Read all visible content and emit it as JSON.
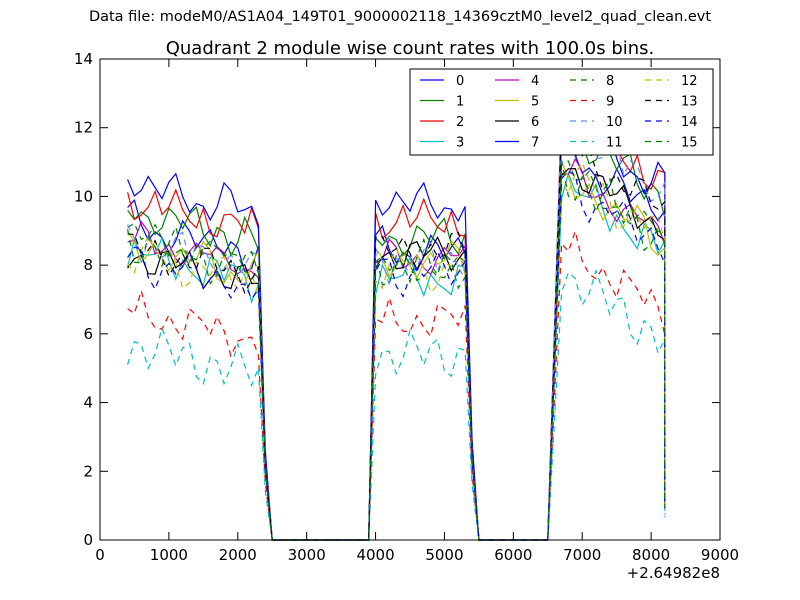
{
  "header": {
    "file_text": "Data file: modeM0/AS1A04_149T01_9000002118_14369cztM0_level2_quad_clean.evt"
  },
  "chart_data": {
    "type": "line",
    "title": "Quadrant 2 module wise count rates with 100.0s bins.",
    "xlabel": "",
    "ylabel": "",
    "x_offset_label": "+2.64982e8",
    "xlim": [
      0,
      9000
    ],
    "ylim": [
      0,
      14
    ],
    "xticks": [
      0,
      1000,
      2000,
      3000,
      4000,
      5000,
      6000,
      7000,
      8000,
      9000
    ],
    "yticks": [
      0,
      2,
      4,
      6,
      8,
      10,
      12,
      14
    ],
    "grid": false,
    "legend_position": "top-right",
    "legend_columns": 4,
    "segments": [
      {
        "x_start": 400,
        "x_end": 2300
      },
      {
        "x_start": 4000,
        "x_end": 5300
      },
      {
        "x_start": 6700,
        "x_end": 8200
      }
    ],
    "zero_gaps": [
      {
        "x_start": 2500,
        "x_end": 3900
      },
      {
        "x_start": 5500,
        "x_end": 6500
      }
    ],
    "series": [
      {
        "name": "0",
        "color": "#0000ff",
        "dash": "solid",
        "levels": [
          9.2,
          8.4,
          10.2
        ]
      },
      {
        "name": "1",
        "color": "#008000",
        "dash": "solid",
        "levels": [
          9.6,
          8.8,
          10.8
        ]
      },
      {
        "name": "2",
        "color": "#ff0000",
        "dash": "solid",
        "levels": [
          9.9,
          9.3,
          11.2
        ]
      },
      {
        "name": "3",
        "color": "#00bfbf",
        "dash": "solid",
        "levels": [
          8.4,
          7.6,
          9.2
        ]
      },
      {
        "name": "4",
        "color": "#bf00bf",
        "dash": "solid",
        "levels": [
          8.8,
          8.2,
          9.6
        ]
      },
      {
        "name": "5",
        "color": "#bfbf00",
        "dash": "solid",
        "levels": [
          8.6,
          8.1,
          9.4
        ]
      },
      {
        "name": "6",
        "color": "#000000",
        "dash": "solid",
        "levels": [
          8.3,
          8.3,
          9.8
        ]
      },
      {
        "name": "7",
        "color": "#0000ff",
        "dash": "solid",
        "levels": [
          10.4,
          9.8,
          11.0
        ]
      },
      {
        "name": "8",
        "color": "#008000",
        "dash": "dashed",
        "levels": [
          8.9,
          7.9,
          9.6
        ]
      },
      {
        "name": "9",
        "color": "#ff0000",
        "dash": "dashed",
        "levels": [
          6.7,
          6.4,
          7.4
        ]
      },
      {
        "name": "10",
        "color": "#6688ff",
        "dash": "dashed",
        "levels": [
          8.8,
          8.1,
          10.9
        ]
      },
      {
        "name": "11",
        "color": "#00bfbf",
        "dash": "dashed",
        "levels": [
          5.7,
          5.4,
          6.6
        ]
      },
      {
        "name": "12",
        "color": "#bfbf00",
        "dash": "dashed",
        "levels": [
          8.4,
          7.9,
          9.6
        ]
      },
      {
        "name": "13",
        "color": "#000000",
        "dash": "dashed",
        "levels": [
          8.5,
          8.4,
          10.3
        ]
      },
      {
        "name": "14",
        "color": "#0000ff",
        "dash": "dashed",
        "levels": [
          8.2,
          7.8,
          9.3
        ]
      },
      {
        "name": "15",
        "color": "#008000",
        "dash": "dashed",
        "levels": [
          8.7,
          8.0,
          9.5
        ]
      }
    ]
  }
}
